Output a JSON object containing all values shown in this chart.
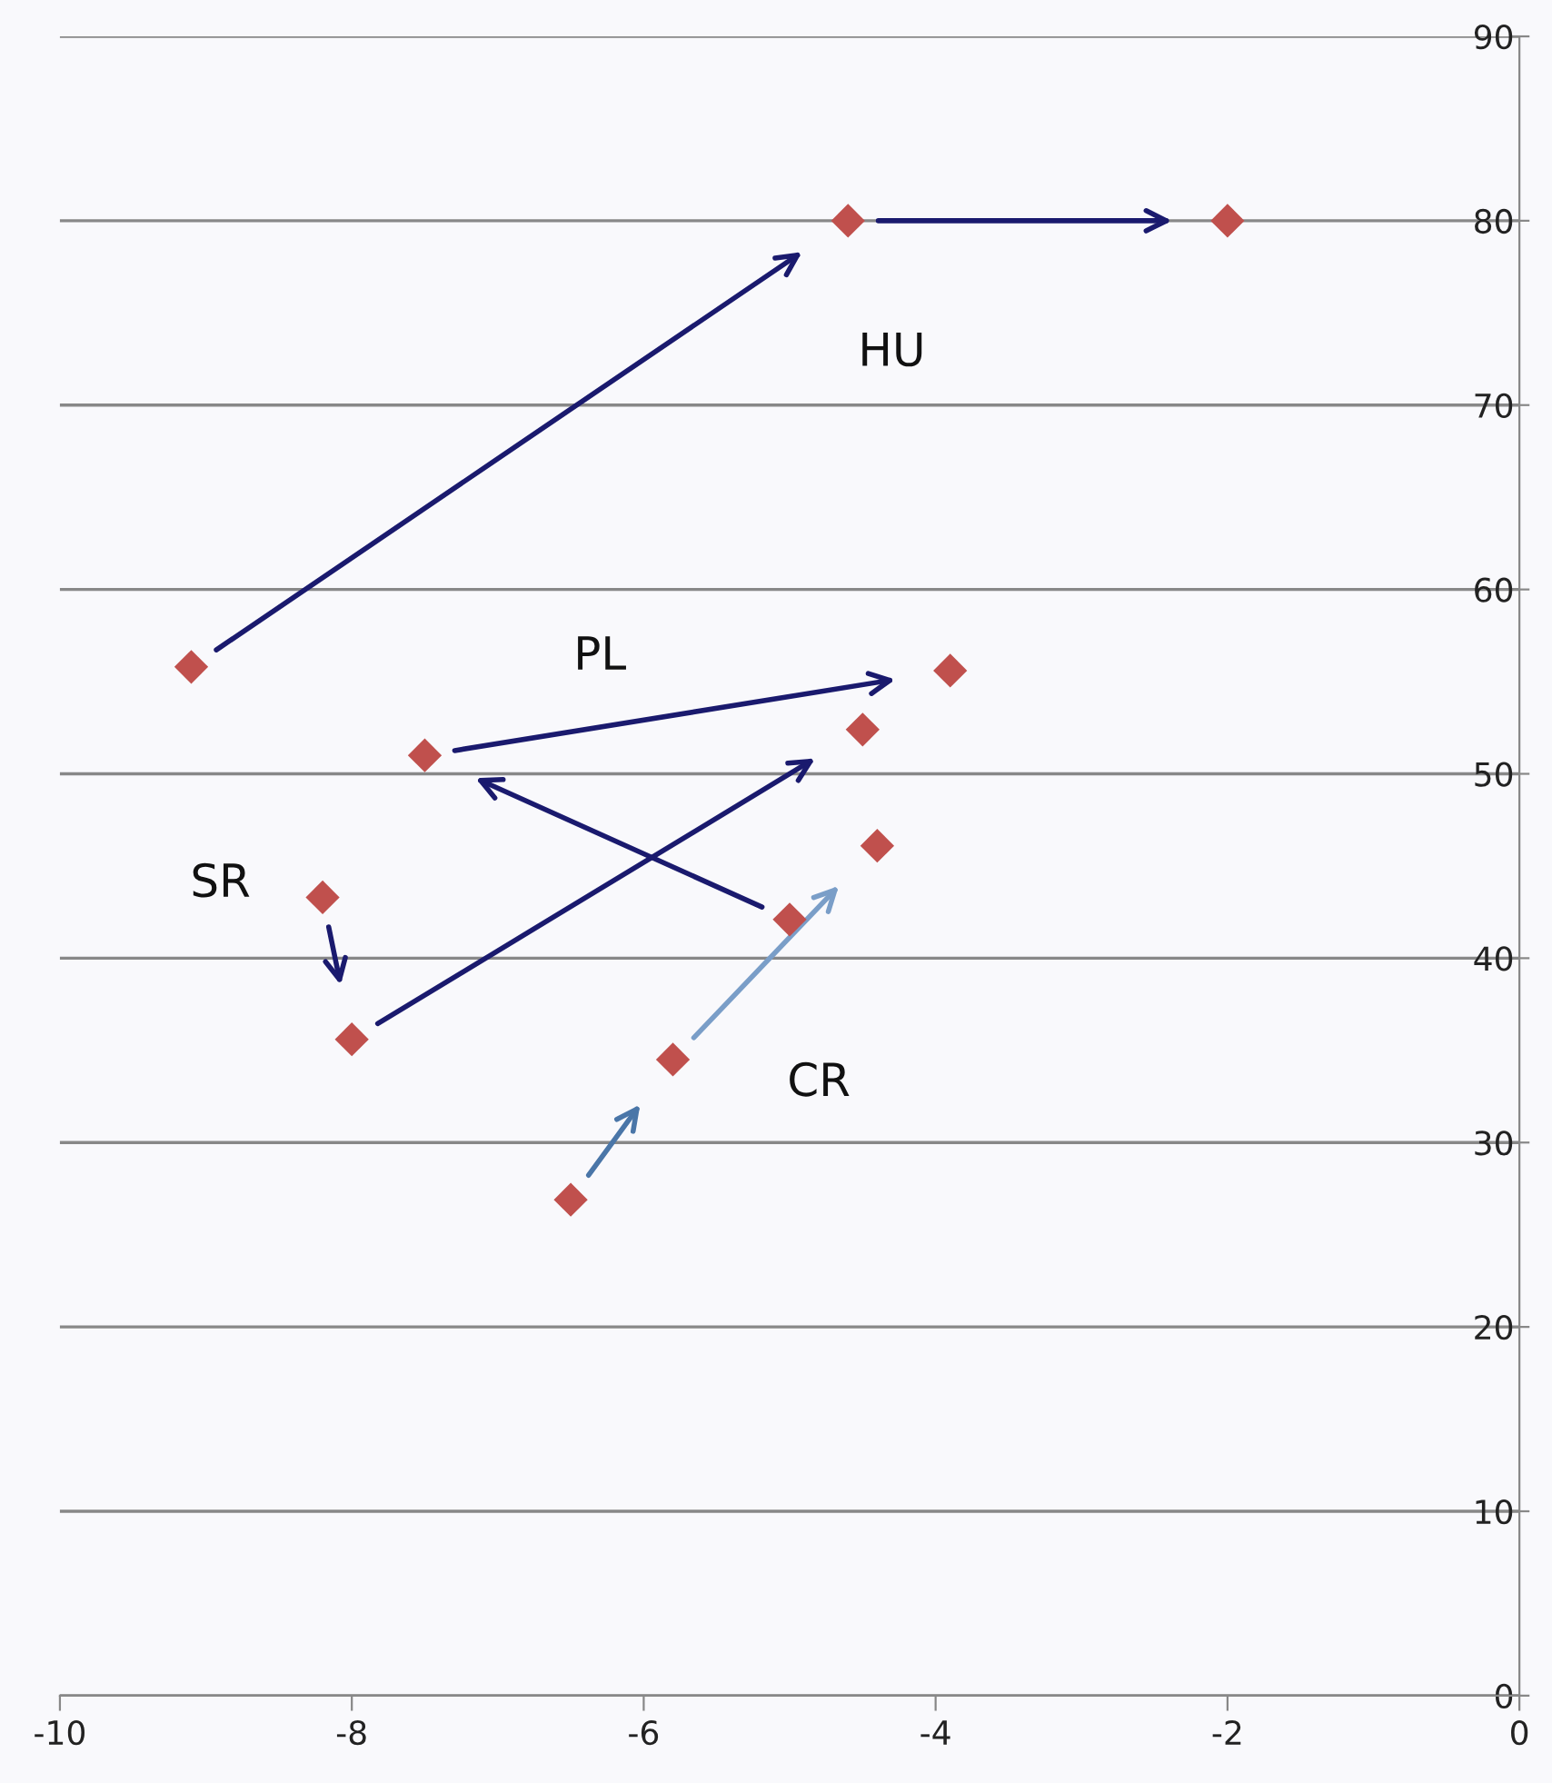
{
  "chart_data": {
    "type": "scatter",
    "x": [
      -9.1,
      -4.6,
      -2.0,
      -7.5,
      -3.9,
      -4.5,
      -4.4,
      -5.0,
      -8.2,
      -8.0,
      -5.8,
      -6.5
    ],
    "series": [
      {
        "color": "#c0504d",
        "values": [
          55.8,
          80,
          80,
          51,
          55.6,
          52.4,
          46.1,
          42.1,
          43.3,
          35.6,
          34.5,
          26.9
        ]
      }
    ],
    "marker": "diamond",
    "xlim": [
      -10,
      0
    ],
    "xticks": [
      -10,
      -8,
      -6,
      -4,
      -2,
      0
    ],
    "ylim": [
      0,
      90
    ],
    "yticks": [
      0,
      10,
      20,
      30,
      40,
      50,
      60,
      70,
      80,
      90
    ],
    "grid": "y",
    "annotations": [
      "HU",
      "PL",
      "SR",
      "CR"
    ]
  }
}
